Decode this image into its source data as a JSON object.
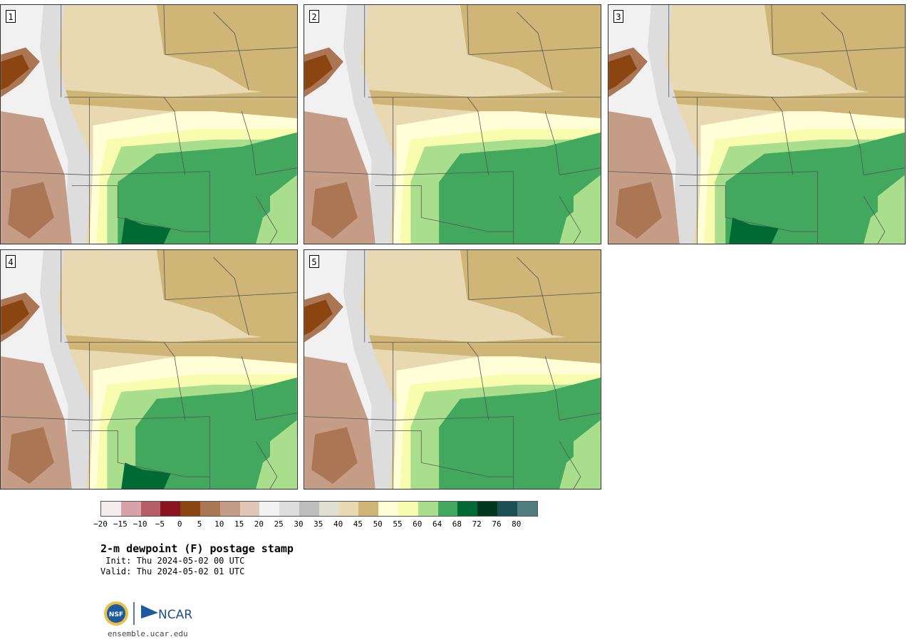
{
  "panels": [
    {
      "label": "1"
    },
    {
      "label": "2"
    },
    {
      "label": "3"
    },
    {
      "label": "4"
    },
    {
      "label": "5"
    }
  ],
  "colorbar": {
    "colors": [
      "#f5ecee",
      "#d8a3a8",
      "#b65e66",
      "#8a1520",
      "#8a4511",
      "#aa7653",
      "#c59c85",
      "#e0c7b6",
      "#f1f1f1",
      "#dddddd",
      "#bdbdbd",
      "#e1e1d2",
      "#e8d9b2",
      "#cfb576",
      "#fffed6",
      "#f8fcae",
      "#a9de8c",
      "#41a85d",
      "#006a35",
      "#00371f",
      "#1a4f55",
      "#4f7c7f"
    ],
    "ticks": [
      "−20",
      "−15",
      "−10",
      "−5",
      "0",
      "5",
      "10",
      "15",
      "20",
      "25",
      "30",
      "35",
      "40",
      "45",
      "50",
      "55",
      "60",
      "64",
      "68",
      "72",
      "76",
      "80"
    ]
  },
  "title": "2-m dewpoint (F) postage stamp",
  "init": " Init: Thu 2024-05-02 00 UTC",
  "valid": "Valid: Thu 2024-05-02 01 UTC",
  "logos": {
    "left": "NSF",
    "right": "NCAR"
  },
  "site": "ensemble.ucar.edu"
}
